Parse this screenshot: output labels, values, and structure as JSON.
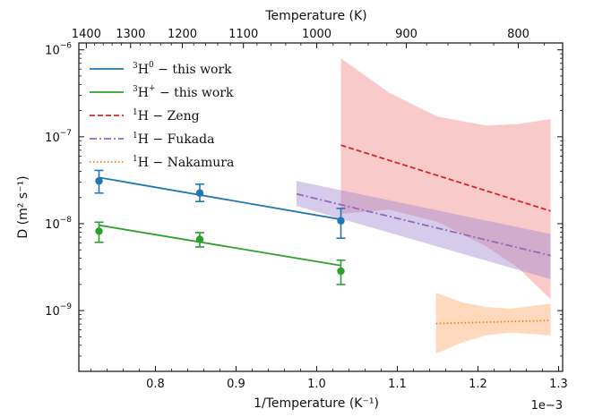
{
  "chart_data": {
    "type": "line",
    "xlabel": "1/Temperature (K⁻¹)",
    "ylabel": "D (m² s⁻¹)",
    "top_xlabel": "Temperature (K)",
    "x_offset_label": "1e−3",
    "x_scale": 0.001,
    "y_scale": "log",
    "xlim": [
      0.000705,
      0.001305
    ],
    "ylim": [
      2e-10,
      1.2e-06
    ],
    "x_ticks": [
      0.0008,
      0.0009,
      0.001,
      0.0011,
      0.0012,
      0.0013
    ],
    "x_tick_labels": [
      "0.8",
      "0.9",
      "1.0",
      "1.1",
      "1.2",
      "1.3"
    ],
    "y_ticks": [
      1e-09,
      1e-08,
      1e-07,
      1e-06
    ],
    "y_tick_labels": [
      "10",
      "10",
      "10",
      "10"
    ],
    "y_tick_exponents": [
      "−9",
      "−8",
      "−7",
      "−6"
    ],
    "top_ticks": [
      1400,
      1300,
      1200,
      1100,
      1000,
      900,
      800
    ],
    "top_tick_labels": [
      "1400",
      "1300",
      "1200",
      "1100",
      "1000",
      "900",
      "800"
    ],
    "legend_position": "top-left",
    "series": [
      {
        "legend_mass": "3",
        "legend_symbol": "H",
        "legend_charge": "0",
        "legend_rest": " − this work",
        "color": "#1f77b4",
        "style": "solid",
        "fit": {
          "x": [
            0.00073,
            0.00103
          ],
          "y": [
            3.4e-08,
            1.12e-08
          ]
        },
        "points": [
          {
            "x": 0.00073,
            "y": 3.1e-08,
            "lo": 2.25e-08,
            "hi": 4.1e-08
          },
          {
            "x": 0.000855,
            "y": 2.25e-08,
            "lo": 1.8e-08,
            "hi": 2.85e-08
          },
          {
            "x": 0.00103,
            "y": 1.08e-08,
            "lo": 6.8e-09,
            "hi": 1.5e-08
          }
        ]
      },
      {
        "legend_mass": "3",
        "legend_symbol": "H",
        "legend_charge": "+",
        "legend_rest": " − this work",
        "color": "#2ca02c",
        "style": "solid",
        "fit": {
          "x": [
            0.00073,
            0.00103
          ],
          "y": [
            9.6e-09,
            3.3e-09
          ]
        },
        "points": [
          {
            "x": 0.00073,
            "y": 8.2e-09,
            "lo": 6.1e-09,
            "hi": 1.04e-08
          },
          {
            "x": 0.000855,
            "y": 6.6e-09,
            "lo": 5.4e-09,
            "hi": 7.9e-09
          },
          {
            "x": 0.00103,
            "y": 2.85e-09,
            "lo": 2e-09,
            "hi": 3.8e-09
          }
        ]
      },
      {
        "legend_mass": "1",
        "legend_symbol": "H",
        "legend_charge": "",
        "legend_rest": " − Zeng",
        "color": "#d62728",
        "style": "dashed",
        "line": {
          "x": [
            0.00103,
            0.00129
          ],
          "y": [
            8e-08,
            1.4e-08
          ]
        },
        "band": {
          "color": "#f08080",
          "opacity": 0.42,
          "x": [
            0.00103,
            0.00109,
            0.00115,
            0.00121,
            0.00125,
            0.00129
          ],
          "lo": [
            1.3e-08,
            1.45e-08,
            1.05e-08,
            5.5e-09,
            3.1e-09,
            1.35e-09
          ],
          "hi": [
            8e-07,
            3.2e-07,
            1.7e-07,
            1.35e-07,
            1.4e-07,
            1.6e-07
          ]
        }
      },
      {
        "legend_mass": "1",
        "legend_symbol": "H",
        "legend_charge": "",
        "legend_rest": " − Fukada",
        "color": "#9467bd",
        "style": "dashdot",
        "line": {
          "x": [
            0.000975,
            0.00129
          ],
          "y": [
            2.2e-08,
            4.3e-09
          ]
        },
        "band": {
          "color": "#9e83cf",
          "opacity": 0.42,
          "x": [
            0.000975,
            0.00129
          ],
          "lo": [
            1.6e-08,
            2.3e-09
          ],
          "hi": [
            3.1e-08,
            7.6e-09
          ]
        }
      },
      {
        "legend_mass": "1",
        "legend_symbol": "H",
        "legend_charge": "",
        "legend_rest": " − Nakamura",
        "color": "#ff7f0e",
        "style": "dotted",
        "line": {
          "x": [
            0.001148,
            0.00129
          ],
          "y": [
            7.1e-10,
            7.7e-10
          ]
        },
        "band": {
          "color": "#fdb47e",
          "opacity": 0.5,
          "x": [
            0.001148,
            0.00118,
            0.00121,
            0.00124,
            0.00129
          ],
          "lo": [
            3.2e-10,
            4.3e-10,
            5.2e-10,
            5.6e-10,
            5.2e-10
          ],
          "hi": [
            1.6e-09,
            1.25e-09,
            1.1e-09,
            1.05e-09,
            1.2e-09
          ]
        }
      }
    ]
  }
}
